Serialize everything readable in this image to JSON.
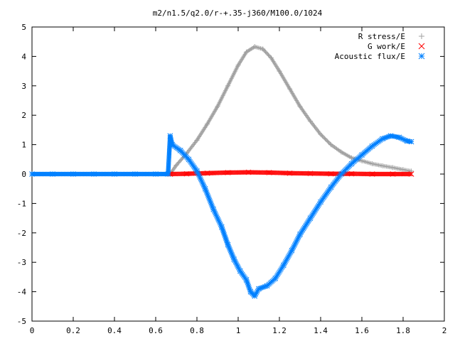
{
  "chart_data": {
    "type": "scatter",
    "title": "m2/n1.5/q2.0/r-+.35-j360/M100.0/1024",
    "xlabel": "",
    "ylabel": "",
    "xlim": [
      0,
      2
    ],
    "ylim": [
      -5,
      5
    ],
    "xticks": [
      "0",
      "0.2",
      "0.4",
      "0.6",
      "0.8",
      "1",
      "1.2",
      "1.4",
      "1.6",
      "1.8",
      "2"
    ],
    "yticks": [
      "5",
      "4",
      "3",
      "2",
      "1",
      "0",
      "-1",
      "-2",
      "-3",
      "-4",
      "-5"
    ],
    "grid": false,
    "legend_position": "top-right",
    "series": [
      {
        "name": "R stress/E",
        "marker": "plus",
        "color": "#a0a0a0",
        "points": [
          [
            0.0,
            0
          ],
          [
            0.1,
            0
          ],
          [
            0.2,
            0
          ],
          [
            0.3,
            0
          ],
          [
            0.4,
            0
          ],
          [
            0.5,
            0
          ],
          [
            0.6,
            0
          ],
          [
            0.67,
            0
          ],
          [
            0.7,
            0.3
          ],
          [
            0.75,
            0.7
          ],
          [
            0.8,
            1.15
          ],
          [
            0.85,
            1.7
          ],
          [
            0.9,
            2.3
          ],
          [
            0.95,
            3.0
          ],
          [
            1.0,
            3.7
          ],
          [
            1.04,
            4.15
          ],
          [
            1.08,
            4.33
          ],
          [
            1.12,
            4.25
          ],
          [
            1.16,
            3.95
          ],
          [
            1.2,
            3.5
          ],
          [
            1.25,
            2.9
          ],
          [
            1.3,
            2.3
          ],
          [
            1.35,
            1.8
          ],
          [
            1.4,
            1.35
          ],
          [
            1.45,
            1.0
          ],
          [
            1.5,
            0.75
          ],
          [
            1.55,
            0.55
          ],
          [
            1.6,
            0.45
          ],
          [
            1.65,
            0.35
          ],
          [
            1.7,
            0.28
          ],
          [
            1.75,
            0.22
          ],
          [
            1.8,
            0.15
          ],
          [
            1.84,
            0.1
          ]
        ]
      },
      {
        "name": "G work/E",
        "marker": "cross",
        "color": "#ff0000",
        "points": [
          [
            0.67,
            0
          ],
          [
            0.75,
            0.01
          ],
          [
            0.85,
            0.03
          ],
          [
            0.95,
            0.05
          ],
          [
            1.05,
            0.06
          ],
          [
            1.15,
            0.05
          ],
          [
            1.25,
            0.03
          ],
          [
            1.35,
            0.02
          ],
          [
            1.45,
            0.01
          ],
          [
            1.55,
            0.01
          ],
          [
            1.65,
            0.0
          ],
          [
            1.75,
            0.0
          ],
          [
            1.84,
            0.0
          ]
        ]
      },
      {
        "name": "Acoustic flux/E",
        "marker": "star",
        "color": "#0080ff",
        "points": [
          [
            0.0,
            0
          ],
          [
            0.1,
            0
          ],
          [
            0.2,
            0
          ],
          [
            0.3,
            0
          ],
          [
            0.4,
            0
          ],
          [
            0.5,
            0
          ],
          [
            0.6,
            0
          ],
          [
            0.66,
            0
          ],
          [
            0.67,
            1.3
          ],
          [
            0.68,
            1.0
          ],
          [
            0.72,
            0.8
          ],
          [
            0.76,
            0.5
          ],
          [
            0.8,
            0.1
          ],
          [
            0.84,
            -0.5
          ],
          [
            0.88,
            -1.2
          ],
          [
            0.92,
            -1.8
          ],
          [
            0.95,
            -2.4
          ],
          [
            0.98,
            -2.9
          ],
          [
            1.01,
            -3.3
          ],
          [
            1.04,
            -3.6
          ],
          [
            1.06,
            -4.0
          ],
          [
            1.08,
            -4.15
          ],
          [
            1.1,
            -3.9
          ],
          [
            1.14,
            -3.8
          ],
          [
            1.18,
            -3.55
          ],
          [
            1.22,
            -3.1
          ],
          [
            1.26,
            -2.6
          ],
          [
            1.3,
            -2.05
          ],
          [
            1.35,
            -1.5
          ],
          [
            1.4,
            -0.95
          ],
          [
            1.45,
            -0.45
          ],
          [
            1.5,
            0.0
          ],
          [
            1.55,
            0.35
          ],
          [
            1.6,
            0.65
          ],
          [
            1.65,
            0.95
          ],
          [
            1.7,
            1.2
          ],
          [
            1.74,
            1.3
          ],
          [
            1.78,
            1.25
          ],
          [
            1.82,
            1.12
          ],
          [
            1.84,
            1.1
          ]
        ]
      }
    ]
  }
}
